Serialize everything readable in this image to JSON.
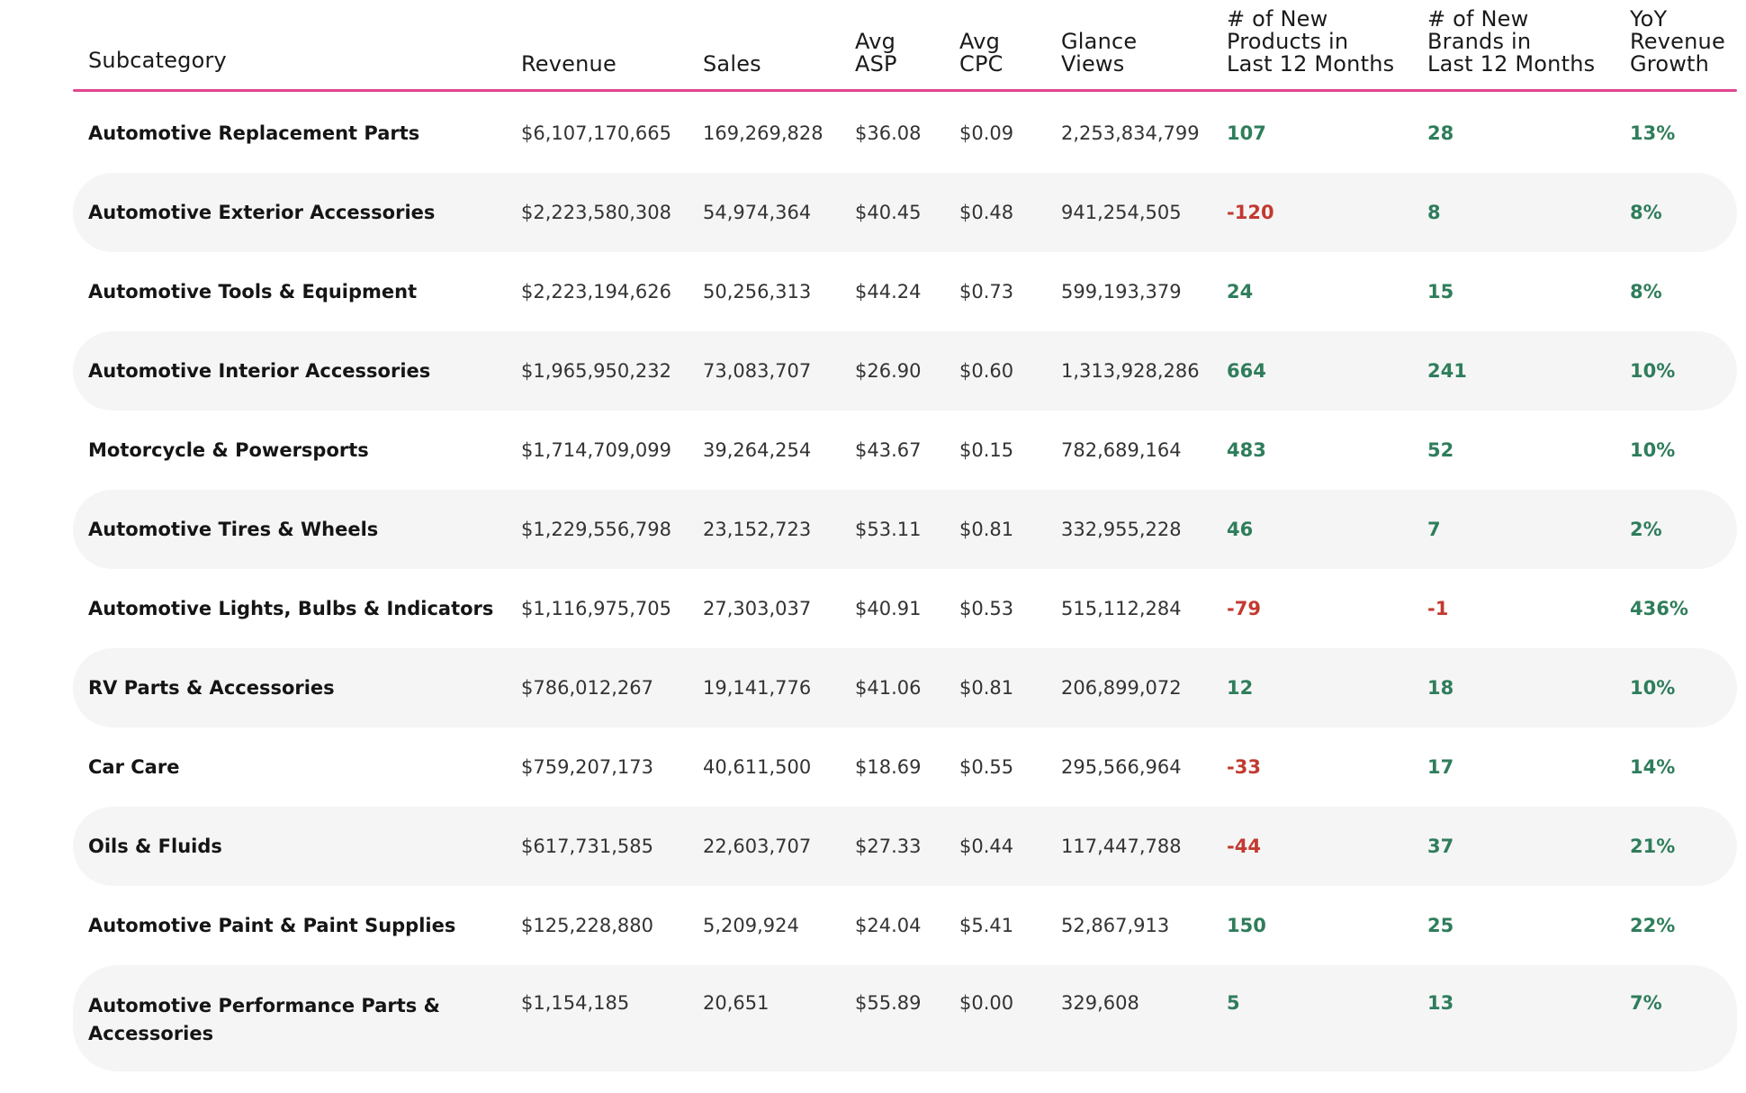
{
  "table": {
    "headers": [
      "Subcategory",
      "Revenue",
      "Sales",
      "Avg\nASP",
      "Avg\nCPC",
      "Glance\nViews",
      "# of New\nProducts in\nLast 12 Months",
      "# of New\nBrands in\nLast 12 Months",
      "YoY\nRevenue\nGrowth"
    ],
    "rows": [
      {
        "subcategory": "Automotive Replacement Parts",
        "revenue": "$6,107,170,665",
        "sales": "169,269,828",
        "avg_asp": "$36.08",
        "avg_cpc": "$0.09",
        "glance_views": "2,253,834,799",
        "new_products": "107",
        "new_brands": "28",
        "yoy_growth": "13%"
      },
      {
        "subcategory": "Automotive Exterior Accessories",
        "revenue": "$2,223,580,308",
        "sales": "54,974,364",
        "avg_asp": "$40.45",
        "avg_cpc": "$0.48",
        "glance_views": "941,254,505",
        "new_products": "-120",
        "new_brands": "8",
        "yoy_growth": "8%"
      },
      {
        "subcategory": "Automotive Tools & Equipment",
        "revenue": "$2,223,194,626",
        "sales": "50,256,313",
        "avg_asp": "$44.24",
        "avg_cpc": "$0.73",
        "glance_views": "599,193,379",
        "new_products": "24",
        "new_brands": "15",
        "yoy_growth": "8%"
      },
      {
        "subcategory": "Automotive Interior Accessories",
        "revenue": "$1,965,950,232",
        "sales": "73,083,707",
        "avg_asp": "$26.90",
        "avg_cpc": "$0.60",
        "glance_views": "1,313,928,286",
        "new_products": "664",
        "new_brands": "241",
        "yoy_growth": "10%"
      },
      {
        "subcategory": "Motorcycle & Powersports",
        "revenue": "$1,714,709,099",
        "sales": "39,264,254",
        "avg_asp": "$43.67",
        "avg_cpc": "$0.15",
        "glance_views": "782,689,164",
        "new_products": "483",
        "new_brands": "52",
        "yoy_growth": "10%"
      },
      {
        "subcategory": "Automotive Tires & Wheels",
        "revenue": "$1,229,556,798",
        "sales": "23,152,723",
        "avg_asp": "$53.11",
        "avg_cpc": "$0.81",
        "glance_views": "332,955,228",
        "new_products": "46",
        "new_brands": "7",
        "yoy_growth": "2%"
      },
      {
        "subcategory": "Automotive Lights, Bulbs & Indicators",
        "revenue": "$1,116,975,705",
        "sales": "27,303,037",
        "avg_asp": "$40.91",
        "avg_cpc": "$0.53",
        "glance_views": "515,112,284",
        "new_products": "-79",
        "new_brands": "-1",
        "yoy_growth": "436%"
      },
      {
        "subcategory": "RV Parts & Accessories",
        "revenue": "$786,012,267",
        "sales": "19,141,776",
        "avg_asp": "$41.06",
        "avg_cpc": "$0.81",
        "glance_views": "206,899,072",
        "new_products": "12",
        "new_brands": "18",
        "yoy_growth": "10%"
      },
      {
        "subcategory": "Car Care",
        "revenue": "$759,207,173",
        "sales": "40,611,500",
        "avg_asp": "$18.69",
        "avg_cpc": "$0.55",
        "glance_views": "295,566,964",
        "new_products": "-33",
        "new_brands": "17",
        "yoy_growth": "14%"
      },
      {
        "subcategory": "Oils & Fluids",
        "revenue": "$617,731,585",
        "sales": "22,603,707",
        "avg_asp": "$27.33",
        "avg_cpc": "$0.44",
        "glance_views": "117,447,788",
        "new_products": "-44",
        "new_brands": "37",
        "yoy_growth": "21%"
      },
      {
        "subcategory": "Automotive Paint & Paint Supplies",
        "revenue": "$125,228,880",
        "sales": "5,209,924",
        "avg_asp": "$24.04",
        "avg_cpc": "$5.41",
        "glance_views": "52,867,913",
        "new_products": "150",
        "new_brands": "25",
        "yoy_growth": "22%"
      },
      {
        "subcategory": "Automotive Performance Parts & Accessories",
        "revenue": "$1,154,185",
        "sales": "20,651",
        "avg_asp": "$55.89",
        "avg_cpc": "$0.00",
        "glance_views": "329,608",
        "new_products": "5",
        "new_brands": "13",
        "yoy_growth": "7%"
      }
    ]
  },
  "colors": {
    "header_rule": "#e0468f",
    "positive": "#2f7d5b",
    "negative": "#c23a30",
    "row_shade": "#f5f5f6"
  }
}
